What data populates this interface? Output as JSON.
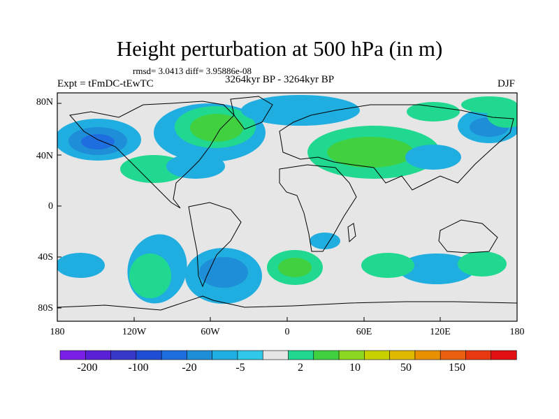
{
  "title": "Height perturbation at 500 hPa (in m)",
  "stats": "rmsd= 3.0413 diff= 3.95886e-08",
  "experiment": "Expt = tFmDC-tEwTC",
  "period": "3264kyr BP - 3264kyr BP",
  "season": "DJF",
  "lat_ticks": [
    "80N",
    "40N",
    "0",
    "40S",
    "80S"
  ],
  "lon_ticks": [
    "180",
    "120W",
    "60W",
    "0",
    "60E",
    "120E",
    "180"
  ],
  "colorbar_labels": [
    "-200",
    "-100",
    "-20",
    "-5",
    "2",
    "10",
    "50",
    "150"
  ],
  "colorbar_colors": [
    "#7a1fe6",
    "#5a20d6",
    "#3838c8",
    "#1f4ed4",
    "#1f6ee0",
    "#1f8ed8",
    "#20aee0",
    "#30c8e8",
    "#e6e6e6",
    "#20d890",
    "#40d040",
    "#8ad820",
    "#c8d000",
    "#e0b800",
    "#e89000",
    "#e86010",
    "#e83810",
    "#e01010"
  ],
  "field_colors": {
    "neutral": "#e6e6e6",
    "neg_light": "#20aee0",
    "neg_mid": "#1f8ed8",
    "neg_strong": "#1f6ee0",
    "pos_light": "#20d890",
    "pos_mid": "#40d040",
    "pos_strong": "#8ad820"
  }
}
